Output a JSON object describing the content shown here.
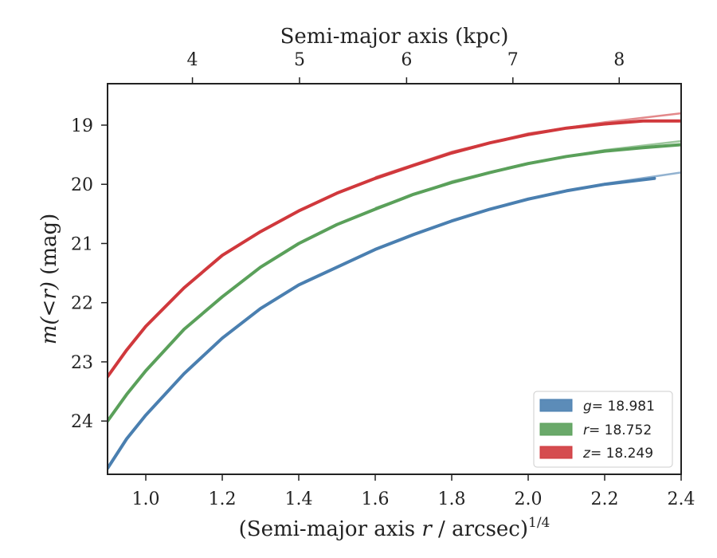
{
  "chart_data": {
    "type": "line",
    "xlabel": "(Semi-major axis r / arcsec)1/4",
    "xlabel_parts": {
      "prefix": "(Semi-major axis ",
      "var": "r",
      "suffix": " / arcsec)",
      "sup": "1/4"
    },
    "ylabel": "m(<r) (mag)",
    "ylabel_parts": {
      "math": "m(<r)",
      "unit": " (mag)"
    },
    "top_xlabel": "Semi-major axis (kpc)",
    "xlim": [
      0.9,
      2.4
    ],
    "ylim": [
      24.9,
      18.3
    ],
    "y_inverted": true,
    "x_ticks": [
      "1.0",
      "1.2",
      "1.4",
      "1.6",
      "1.8",
      "2.0",
      "2.2",
      "2.4"
    ],
    "x_tick_values": [
      1.0,
      1.2,
      1.4,
      1.6,
      1.8,
      2.0,
      2.2,
      2.4
    ],
    "y_ticks": [
      "19",
      "20",
      "21",
      "22",
      "23",
      "24"
    ],
    "y_tick_values": [
      19,
      20,
      21,
      22,
      23,
      24
    ],
    "top_ticks": [
      "4",
      "5",
      "6",
      "7",
      "8"
    ],
    "top_tick_positions_x": [
      1.122,
      1.402,
      1.682,
      1.96,
      2.238
    ],
    "legend_placement": "lower-right",
    "grid": false,
    "series": [
      {
        "name": "g = 18.981",
        "legend_var": "g",
        "legend_value": "= 18.981",
        "color": "#4a7fb0",
        "points": [
          [
            0.9,
            24.8
          ],
          [
            0.95,
            24.3
          ],
          [
            1.0,
            23.9
          ],
          [
            1.1,
            23.2
          ],
          [
            1.2,
            22.6
          ],
          [
            1.3,
            22.1
          ],
          [
            1.4,
            21.7
          ],
          [
            1.5,
            21.4
          ],
          [
            1.6,
            21.1
          ],
          [
            1.7,
            20.85
          ],
          [
            1.8,
            20.62
          ],
          [
            1.9,
            20.42
          ],
          [
            2.0,
            20.25
          ],
          [
            2.1,
            20.11
          ],
          [
            2.2,
            20.0
          ],
          [
            2.33,
            19.9
          ]
        ],
        "model": [
          [
            1.6,
            21.1
          ],
          [
            1.8,
            20.62
          ],
          [
            2.0,
            20.24
          ],
          [
            2.2,
            19.99
          ],
          [
            2.4,
            19.8
          ]
        ]
      },
      {
        "name": "r = 18.752",
        "legend_var": "r",
        "legend_value": "= 18.752",
        "color": "#5aa05a",
        "points": [
          [
            0.9,
            24.0
          ],
          [
            0.95,
            23.55
          ],
          [
            1.0,
            23.15
          ],
          [
            1.1,
            22.45
          ],
          [
            1.2,
            21.9
          ],
          [
            1.3,
            21.4
          ],
          [
            1.4,
            21.0
          ],
          [
            1.5,
            20.68
          ],
          [
            1.6,
            20.42
          ],
          [
            1.7,
            20.17
          ],
          [
            1.8,
            19.97
          ],
          [
            1.9,
            19.8
          ],
          [
            2.0,
            19.65
          ],
          [
            2.1,
            19.53
          ],
          [
            2.2,
            19.44
          ],
          [
            2.3,
            19.38
          ],
          [
            2.4,
            19.33
          ]
        ],
        "model": [
          [
            1.6,
            20.4
          ],
          [
            1.8,
            19.95
          ],
          [
            2.0,
            19.64
          ],
          [
            2.2,
            19.42
          ],
          [
            2.4,
            19.27
          ]
        ]
      },
      {
        "name": "z = 18.249",
        "legend_var": "z",
        "legend_value": "= 18.249",
        "color": "#d0383c",
        "points": [
          [
            0.9,
            23.25
          ],
          [
            0.95,
            22.8
          ],
          [
            1.0,
            22.4
          ],
          [
            1.1,
            21.75
          ],
          [
            1.2,
            21.2
          ],
          [
            1.3,
            20.8
          ],
          [
            1.4,
            20.45
          ],
          [
            1.5,
            20.15
          ],
          [
            1.6,
            19.9
          ],
          [
            1.7,
            19.68
          ],
          [
            1.8,
            19.47
          ],
          [
            1.9,
            19.3
          ],
          [
            2.0,
            19.16
          ],
          [
            2.1,
            19.05
          ],
          [
            2.2,
            18.98
          ],
          [
            2.3,
            18.93
          ],
          [
            2.4,
            18.93
          ]
        ],
        "model": [
          [
            1.6,
            19.88
          ],
          [
            1.8,
            19.45
          ],
          [
            2.0,
            19.14
          ],
          [
            2.2,
            18.95
          ],
          [
            2.4,
            18.8
          ]
        ]
      }
    ]
  }
}
